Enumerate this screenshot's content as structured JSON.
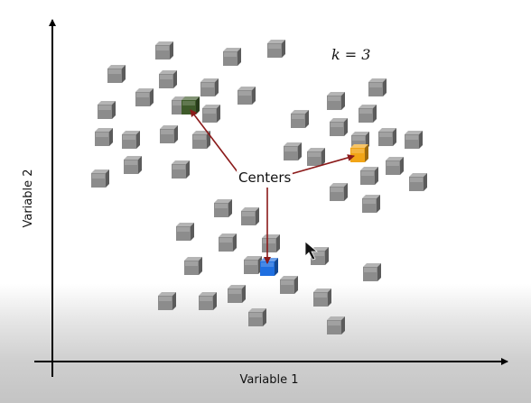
{
  "diagram": {
    "x_axis_label": "Variable 1",
    "y_axis_label": "Variable 2",
    "k_label": "k = 3",
    "centers_label": "Centers",
    "cube_color": "#8c8c8c",
    "center_colors": {
      "top_left": "#3e5a2a",
      "right": "#f2a516",
      "bottom": "#1f6fe0"
    },
    "arrow_color": "#8b1a1a"
  }
}
